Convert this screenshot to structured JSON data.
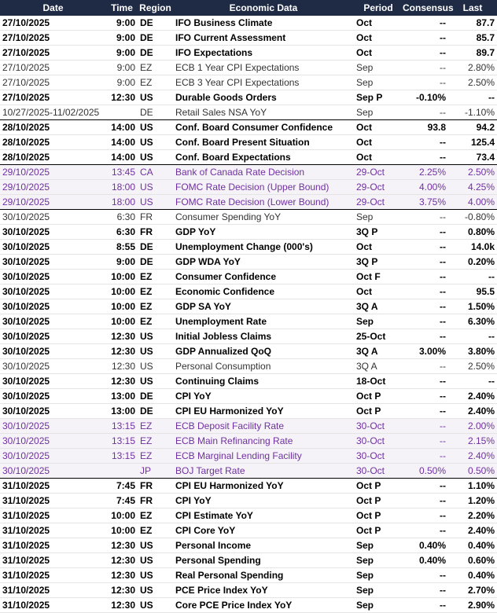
{
  "table": {
    "columns": [
      "Date",
      "Time",
      "Region",
      "Economic Data",
      "Period",
      "Consensus",
      "Last"
    ],
    "rows": [
      {
        "style": "bold",
        "cells": [
          "27/10/2025",
          "9:00",
          "DE",
          "IFO Business Climate",
          "Oct",
          "--",
          "87.7"
        ]
      },
      {
        "style": "bold",
        "cells": [
          "27/10/2025",
          "9:00",
          "DE",
          "IFO Current Assessment",
          "Oct",
          "--",
          "85.7"
        ]
      },
      {
        "style": "bold",
        "cells": [
          "27/10/2025",
          "9:00",
          "DE",
          "IFO Expectations",
          "Oct",
          "--",
          "89.7"
        ]
      },
      {
        "style": "normal",
        "cells": [
          "27/10/2025",
          "9:00",
          "EZ",
          "ECB 1 Year CPI Expectations",
          "Sep",
          "--",
          "2.80%"
        ]
      },
      {
        "style": "normal",
        "cells": [
          "27/10/2025",
          "9:00",
          "EZ",
          "ECB 3 Year CPI Expectations",
          "Sep",
          "--",
          "2.50%"
        ]
      },
      {
        "style": "bold",
        "cells": [
          "27/10/2025",
          "12:30",
          "US",
          "Durable Goods Orders",
          "Sep P",
          "-0.10%",
          "--"
        ]
      },
      {
        "style": "normal",
        "sep": true,
        "cells": [
          "10/27/2025-11/02/2025",
          null,
          "DE",
          "Retail Sales NSA YoY",
          "Sep",
          "--",
          "-1.10%"
        ]
      },
      {
        "style": "bold",
        "cells": [
          "28/10/2025",
          "14:00",
          "US",
          "Conf. Board Consumer Confidence",
          "Oct",
          "93.8",
          "94.2"
        ]
      },
      {
        "style": "bold",
        "cells": [
          "28/10/2025",
          "14:00",
          "US",
          "Conf. Board Present Situation",
          "Oct",
          "--",
          "125.4"
        ]
      },
      {
        "style": "bold",
        "sep": true,
        "cells": [
          "28/10/2025",
          "14:00",
          "US",
          "Conf. Board Expectations",
          "Oct",
          "--",
          "73.4"
        ]
      },
      {
        "style": "purple",
        "cells": [
          "29/10/2025",
          "13:45",
          "CA",
          "Bank of Canada Rate Decision",
          "29-Oct",
          "2.25%",
          "2.50%"
        ]
      },
      {
        "style": "purple",
        "cells": [
          "29/10/2025",
          "18:00",
          "US",
          "FOMC Rate Decision (Upper Bound)",
          "29-Oct",
          "4.00%",
          "4.25%"
        ]
      },
      {
        "style": "purple",
        "sep": true,
        "cells": [
          "29/10/2025",
          "18:00",
          "US",
          "FOMC Rate Decision (Lower Bound)",
          "29-Oct",
          "3.75%",
          "4.00%"
        ]
      },
      {
        "style": "normal",
        "cells": [
          "30/10/2025",
          "6:30",
          "FR",
          "Consumer Spending YoY",
          "Sep",
          "--",
          "-0.80%"
        ]
      },
      {
        "style": "bold",
        "cells": [
          "30/10/2025",
          "6:30",
          "FR",
          "GDP YoY",
          "3Q P",
          "--",
          "0.80%"
        ]
      },
      {
        "style": "bold",
        "cells": [
          "30/10/2025",
          "8:55",
          "DE",
          "Unemployment Change (000's)",
          "Oct",
          "--",
          "14.0k"
        ]
      },
      {
        "style": "bold",
        "cells": [
          "30/10/2025",
          "9:00",
          "DE",
          "GDP WDA YoY",
          "3Q P",
          "--",
          "0.20%"
        ]
      },
      {
        "style": "bold",
        "cells": [
          "30/10/2025",
          "10:00",
          "EZ",
          "Consumer Confidence",
          "Oct F",
          "--",
          "--"
        ]
      },
      {
        "style": "bold",
        "cells": [
          "30/10/2025",
          "10:00",
          "EZ",
          "Economic Confidence",
          "Oct",
          "--",
          "95.5"
        ]
      },
      {
        "style": "bold",
        "cells": [
          "30/10/2025",
          "10:00",
          "EZ",
          "GDP SA YoY",
          "3Q A",
          "--",
          "1.50%"
        ]
      },
      {
        "style": "bold",
        "cells": [
          "30/10/2025",
          "10:00",
          "EZ",
          "Unemployment Rate",
          "Sep",
          "--",
          "6.30%"
        ]
      },
      {
        "style": "bold",
        "cells": [
          "30/10/2025",
          "12:30",
          "US",
          "Initial Jobless Claims",
          "25-Oct",
          "--",
          "--"
        ]
      },
      {
        "style": "bold",
        "cells": [
          "30/10/2025",
          "12:30",
          "US",
          "GDP Annualized QoQ",
          "3Q A",
          "3.00%",
          "3.80%"
        ]
      },
      {
        "style": "normal",
        "cells": [
          "30/10/2025",
          "12:30",
          "US",
          "Personal Consumption",
          "3Q A",
          "--",
          "2.50%"
        ]
      },
      {
        "style": "bold",
        "cells": [
          "30/10/2025",
          "12:30",
          "US",
          "Continuing Claims",
          "18-Oct",
          "--",
          "--"
        ]
      },
      {
        "style": "bold",
        "cells": [
          "30/10/2025",
          "13:00",
          "DE",
          "CPI YoY",
          "Oct P",
          "--",
          "2.40%"
        ]
      },
      {
        "style": "bold",
        "cells": [
          "30/10/2025",
          "13:00",
          "DE",
          "CPI EU Harmonized YoY",
          "Oct P",
          "--",
          "2.40%"
        ]
      },
      {
        "style": "purple",
        "cells": [
          "30/10/2025",
          "13:15",
          "EZ",
          "ECB Deposit Facility Rate",
          "30-Oct",
          "--",
          "2.00%"
        ]
      },
      {
        "style": "purple",
        "cells": [
          "30/10/2025",
          "13:15",
          "EZ",
          "ECB Main Refinancing Rate",
          "30-Oct",
          "--",
          "2.15%"
        ]
      },
      {
        "style": "purple",
        "cells": [
          "30/10/2025",
          "13:15",
          "EZ",
          "ECB Marginal Lending Facility",
          "30-Oct",
          "--",
          "2.40%"
        ]
      },
      {
        "style": "purple",
        "sep": true,
        "cells": [
          "30/10/2025",
          null,
          "JP",
          "BOJ Target Rate",
          "30-Oct",
          "0.50%",
          "0.50%"
        ]
      },
      {
        "style": "bold",
        "cells": [
          "31/10/2025",
          "7:45",
          "FR",
          "CPI EU Harmonized YoY",
          "Oct P",
          "--",
          "1.10%"
        ]
      },
      {
        "style": "bold",
        "cells": [
          "31/10/2025",
          "7:45",
          "FR",
          "CPI YoY",
          "Oct P",
          "--",
          "1.20%"
        ]
      },
      {
        "style": "bold",
        "cells": [
          "31/10/2025",
          "10:00",
          "EZ",
          "CPI Estimate YoY",
          "Oct P",
          "--",
          "2.20%"
        ]
      },
      {
        "style": "bold",
        "cells": [
          "31/10/2025",
          "10:00",
          "EZ",
          "CPI Core YoY",
          "Oct P",
          "--",
          "2.40%"
        ]
      },
      {
        "style": "bold",
        "cells": [
          "31/10/2025",
          "12:30",
          "US",
          "Personal Income",
          "Sep",
          "0.40%",
          "0.40%"
        ]
      },
      {
        "style": "bold",
        "cells": [
          "31/10/2025",
          "12:30",
          "US",
          "Personal Spending",
          "Sep",
          "0.40%",
          "0.60%"
        ]
      },
      {
        "style": "bold",
        "cells": [
          "31/10/2025",
          "12:30",
          "US",
          "Real Personal Spending",
          "Sep",
          "--",
          "0.40%"
        ]
      },
      {
        "style": "bold",
        "cells": [
          "31/10/2025",
          "12:30",
          "US",
          "PCE Price Index YoY",
          "Sep",
          "--",
          "2.70%"
        ]
      },
      {
        "style": "bold",
        "cells": [
          "31/10/2025",
          "12:30",
          "US",
          "Core PCE Price Index YoY",
          "Sep",
          "--",
          "2.90%"
        ]
      }
    ]
  }
}
